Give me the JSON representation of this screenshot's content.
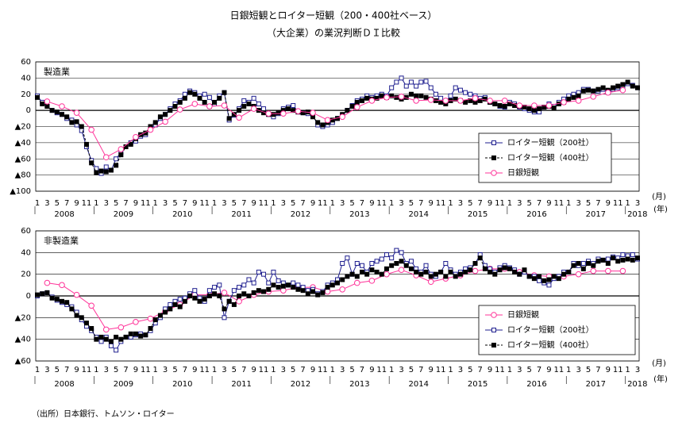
{
  "title": "日銀短観とロイター短観（200・400社ベース）",
  "subtitle": "（大企業）の業況判断ＤＩ比較",
  "source": "（出所）日本銀行、トムソン・ロイター",
  "chart_data": [
    {
      "type": "line",
      "title": "製造業",
      "categories": [
        "1",
        null,
        "3",
        null,
        "5",
        null,
        "7",
        null,
        "9",
        null,
        "11",
        null,
        "1",
        null,
        "3",
        null,
        "5",
        null,
        "7",
        null,
        "9",
        null,
        "11",
        null,
        "1",
        null,
        "3",
        null,
        "5",
        null,
        "7",
        null,
        "9",
        null,
        "11",
        null,
        "1",
        null,
        "3",
        null,
        "5",
        null,
        "7",
        null,
        "9",
        null,
        "11",
        null,
        "1",
        null,
        "3",
        null,
        "5",
        null,
        "7",
        null,
        "9",
        null,
        "11",
        null,
        "1",
        null,
        "3",
        null,
        "5",
        null,
        "7",
        null,
        "9",
        null,
        "11",
        null,
        "1",
        null,
        "3",
        null,
        "5",
        null,
        "7",
        null,
        "9",
        null,
        "11",
        null,
        "1",
        null,
        "3",
        null,
        "5",
        null,
        "7",
        null,
        "9",
        null,
        "11",
        null,
        "1",
        null,
        "3",
        null,
        "5",
        null,
        "7",
        null,
        "9",
        null,
        "11",
        null,
        "1",
        null,
        "3",
        null,
        "5",
        null,
        "7",
        null,
        "9",
        null,
        "11",
        null,
        "1",
        null,
        "3"
      ],
      "year_labels": [
        "2008",
        "2009",
        "2010",
        "2011",
        "2012",
        "2013",
        "2014",
        "2015",
        "2016",
        "2017",
        "2018"
      ],
      "month_unit": "(月)",
      "year_unit": "(年)",
      "ylim": [
        -100,
        60
      ],
      "yticks": [
        60,
        40,
        20,
        0,
        {
          "value": -20,
          "label": "▲20"
        },
        {
          "value": -40,
          "label": "▲40"
        },
        {
          "value": -60,
          "label": "▲60"
        },
        {
          "value": -80,
          "label": "▲80"
        },
        {
          "value": -100,
          "label": "▲100"
        }
      ],
      "grid": true,
      "legend": "lower right",
      "series": [
        {
          "name": "ロイター短観（200社）",
          "color": "#1f1f8f",
          "marker": "open-square",
          "dashed": false,
          "values": [
            18,
            10,
            5,
            0,
            -3,
            -5,
            -10,
            -12,
            -18,
            -25,
            -45,
            -62,
            -72,
            -78,
            -70,
            -74,
            -60,
            -52,
            -45,
            -40,
            -38,
            -32,
            -30,
            -22,
            -18,
            -10,
            -5,
            2,
            8,
            12,
            20,
            24,
            22,
            18,
            20,
            16,
            8,
            18,
            22,
            -12,
            -6,
            2,
            12,
            10,
            15,
            8,
            2,
            -5,
            -8,
            -4,
            2,
            4,
            6,
            -2,
            -3,
            -4,
            -6,
            -18,
            -20,
            -18,
            -15,
            -10,
            -6,
            0,
            6,
            12,
            14,
            18,
            16,
            18,
            20,
            18,
            28,
            35,
            40,
            30,
            35,
            30,
            35,
            36,
            28,
            20,
            15,
            10,
            18,
            28,
            25,
            22,
            20,
            18,
            15,
            16,
            10,
            8,
            5,
            4,
            10,
            8,
            4,
            2,
            0,
            -2,
            -2,
            4,
            8,
            5,
            10,
            14,
            18,
            20,
            22,
            26,
            26,
            24,
            24,
            26,
            22,
            26,
            28,
            30,
            33,
            31,
            28
          ]
        },
        {
          "name": "ロイター短観（400社）",
          "color": "#000000",
          "marker": "filled-square",
          "dashed": true,
          "values": [
            16,
            8,
            5,
            0,
            -2,
            -5,
            -8,
            -15,
            -14,
            -20,
            -42,
            -65,
            -77,
            -75,
            -76,
            -74,
            -68,
            -55,
            -45,
            -42,
            -35,
            -30,
            -28,
            -20,
            -15,
            -8,
            -5,
            0,
            5,
            10,
            15,
            22,
            20,
            15,
            10,
            5,
            10,
            15,
            22,
            -10,
            -5,
            0,
            5,
            8,
            5,
            0,
            -3,
            -5,
            -5,
            -3,
            0,
            2,
            0,
            -2,
            -3,
            -2,
            -8,
            -15,
            -18,
            -15,
            -12,
            -10,
            -5,
            0,
            5,
            10,
            12,
            15,
            14,
            15,
            18,
            16,
            18,
            16,
            14,
            16,
            20,
            18,
            18,
            16,
            14,
            12,
            10,
            8,
            12,
            14,
            12,
            10,
            12,
            10,
            12,
            14,
            10,
            8,
            6,
            5,
            8,
            6,
            5,
            4,
            2,
            0,
            2,
            4,
            5,
            3,
            8,
            10,
            14,
            16,
            18,
            24,
            25,
            24,
            26,
            28,
            25,
            28,
            30,
            32,
            35,
            30,
            28
          ]
        },
        {
          "name": "日銀短観",
          "color": "#ff3399",
          "marker": "open-circle",
          "dashed": false,
          "values": [
            null,
            null,
            11,
            null,
            null,
            5,
            null,
            null,
            -3,
            null,
            null,
            -24,
            null,
            null,
            -58,
            null,
            null,
            -48,
            null,
            null,
            -33,
            null,
            null,
            -24,
            null,
            null,
            -14,
            null,
            null,
            1,
            null,
            null,
            8,
            null,
            null,
            5,
            null,
            null,
            6,
            null,
            null,
            -9,
            null,
            null,
            2,
            null,
            null,
            -4,
            null,
            null,
            -4,
            null,
            null,
            -1,
            null,
            null,
            -3,
            null,
            null,
            -12,
            null,
            null,
            -8,
            null,
            null,
            4,
            null,
            null,
            12,
            null,
            null,
            16,
            null,
            null,
            17,
            null,
            null,
            12,
            null,
            null,
            13,
            null,
            null,
            12,
            null,
            null,
            12,
            null,
            null,
            15,
            null,
            null,
            12,
            null,
            null,
            12,
            null,
            null,
            6,
            null,
            null,
            6,
            null,
            null,
            6,
            null,
            null,
            10,
            null,
            null,
            12,
            null,
            null,
            17,
            null,
            null,
            22,
            null,
            null,
            25,
            null,
            null,
            null
          ]
        }
      ]
    },
    {
      "type": "line",
      "title": "非製造業",
      "categories": [
        "1",
        null,
        "3",
        null,
        "5",
        null,
        "7",
        null,
        "9",
        null,
        "11",
        null,
        "1",
        null,
        "3",
        null,
        "5",
        null,
        "7",
        null,
        "9",
        null,
        "11",
        null,
        "1",
        null,
        "3",
        null,
        "5",
        null,
        "7",
        null,
        "9",
        null,
        "11",
        null,
        "1",
        null,
        "3",
        null,
        "5",
        null,
        "7",
        null,
        "9",
        null,
        "11",
        null,
        "1",
        null,
        "3",
        null,
        "5",
        null,
        "7",
        null,
        "9",
        null,
        "11",
        null,
        "1",
        null,
        "3",
        null,
        "5",
        null,
        "7",
        null,
        "9",
        null,
        "11",
        null,
        "1",
        null,
        "3",
        null,
        "5",
        null,
        "7",
        null,
        "9",
        null,
        "11",
        null,
        "1",
        null,
        "3",
        null,
        "5",
        null,
        "7",
        null,
        "9",
        null,
        "11",
        null,
        "1",
        null,
        "3",
        null,
        "5",
        null,
        "7",
        null,
        "9",
        null,
        "11",
        null,
        "1",
        null,
        "3",
        null,
        "5",
        null,
        "7",
        null,
        "9",
        null,
        "11",
        null,
        "1",
        null,
        "3"
      ],
      "year_labels": [
        "2008",
        "2009",
        "2010",
        "2011",
        "2012",
        "2013",
        "2014",
        "2015",
        "2016",
        "2017",
        "2018"
      ],
      "month_unit": "(月)",
      "year_unit": "(年)",
      "ylim": [
        -60,
        60
      ],
      "yticks": [
        60,
        40,
        20,
        0,
        {
          "value": -20,
          "label": "▲20"
        },
        {
          "value": -40,
          "label": "▲40"
        },
        {
          "value": -60,
          "label": "▲60"
        }
      ],
      "grid": true,
      "legend": "lower right",
      "series": [
        {
          "name": "日銀短観",
          "color": "#ff3399",
          "marker": "open-circle",
          "dashed": false,
          "values": [
            null,
            null,
            12,
            null,
            null,
            10,
            null,
            null,
            1,
            null,
            null,
            -9,
            null,
            null,
            -31,
            null,
            null,
            -29,
            null,
            null,
            -24,
            null,
            null,
            -21,
            null,
            null,
            -14,
            null,
            null,
            -8,
            null,
            null,
            1,
            null,
            null,
            1,
            null,
            null,
            3,
            null,
            null,
            -5,
            null,
            null,
            1,
            null,
            null,
            4,
            null,
            null,
            5,
            null,
            null,
            8,
            null,
            null,
            8,
            null,
            null,
            4,
            null,
            null,
            6,
            null,
            null,
            12,
            null,
            null,
            14,
            null,
            null,
            20,
            null,
            null,
            24,
            null,
            null,
            19,
            null,
            null,
            13,
            null,
            null,
            16,
            null,
            null,
            19,
            null,
            null,
            23,
            null,
            null,
            25,
            null,
            null,
            25,
            null,
            null,
            22,
            null,
            null,
            19,
            null,
            null,
            18,
            null,
            null,
            18,
            null,
            null,
            20,
            null,
            null,
            23,
            null,
            null,
            23,
            null,
            null,
            23,
            null,
            null,
            null
          ]
        },
        {
          "name": "ロイター短観（200社）",
          "color": "#1f1f8f",
          "marker": "open-square",
          "dashed": false,
          "values": [
            0,
            2,
            3,
            -1,
            -4,
            -6,
            -8,
            -10,
            -15,
            -22,
            -28,
            -32,
            -38,
            -42,
            -38,
            -46,
            -50,
            -42,
            -38,
            -38,
            -36,
            -35,
            -36,
            -32,
            -25,
            -20,
            -12,
            -8,
            -5,
            -3,
            -2,
            2,
            5,
            -2,
            -5,
            5,
            8,
            10,
            -20,
            -5,
            5,
            8,
            10,
            15,
            12,
            22,
            20,
            12,
            22,
            14,
            12,
            10,
            12,
            10,
            8,
            5,
            6,
            2,
            4,
            10,
            12,
            15,
            30,
            35,
            20,
            30,
            28,
            22,
            30,
            32,
            34,
            38,
            35,
            42,
            40,
            30,
            32,
            25,
            22,
            28,
            20,
            18,
            22,
            30,
            24,
            20,
            22,
            25,
            26,
            30,
            38,
            28,
            25,
            22,
            26,
            28,
            26,
            24,
            20,
            22,
            18,
            18,
            14,
            12,
            10,
            16,
            18,
            22,
            22,
            30,
            28,
            30,
            32,
            30,
            34,
            33,
            34,
            36,
            35,
            38,
            37,
            38,
            34
          ]
        },
        {
          "name": "ロイター短観（400社）",
          "color": "#000000",
          "marker": "filled-square",
          "dashed": true,
          "values": [
            1,
            2,
            3,
            -2,
            -3,
            -5,
            -6,
            -12,
            -18,
            -20,
            -25,
            -30,
            -40,
            -38,
            -40,
            -42,
            -38,
            -40,
            -38,
            -35,
            -35,
            -37,
            -36,
            -30,
            -22,
            -18,
            -15,
            -12,
            -8,
            -10,
            -5,
            0,
            -2,
            -5,
            -3,
            0,
            2,
            0,
            -12,
            -5,
            -8,
            0,
            2,
            0,
            3,
            5,
            4,
            6,
            10,
            8,
            9,
            10,
            8,
            6,
            5,
            2,
            4,
            1,
            3,
            8,
            10,
            12,
            15,
            18,
            20,
            18,
            22,
            20,
            24,
            22,
            20,
            25,
            28,
            30,
            32,
            28,
            25,
            22,
            20,
            22,
            18,
            20,
            22,
            18,
            22,
            18,
            20,
            22,
            24,
            30,
            35,
            25,
            22,
            20,
            24,
            26,
            25,
            22,
            20,
            24,
            18,
            16,
            18,
            14,
            15,
            18,
            16,
            20,
            22,
            28,
            30,
            25,
            30,
            28,
            32,
            33,
            30,
            35,
            32,
            33,
            34,
            33,
            35
          ]
        }
      ]
    }
  ]
}
